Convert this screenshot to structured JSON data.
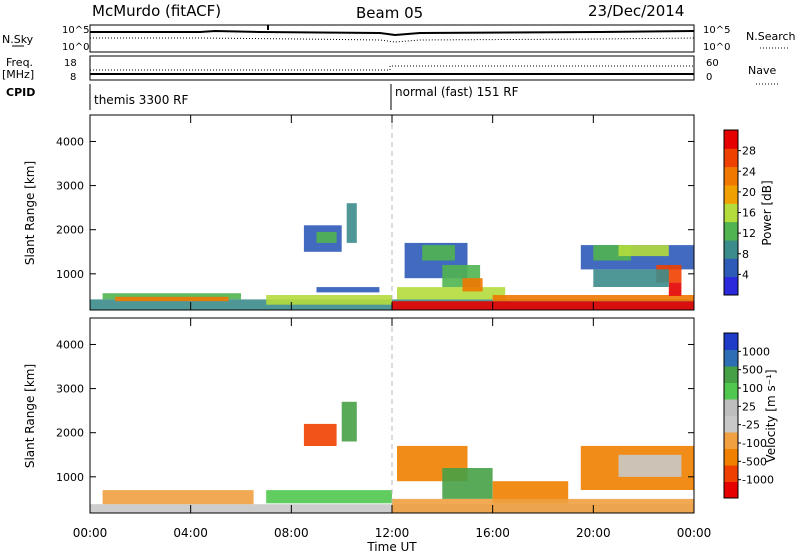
{
  "header": {
    "station": "McMurdo (fitACF)",
    "beam": "Beam 05",
    "date": "23/Dec/2014"
  },
  "top_panels": {
    "nsky_label": "N.Sky",
    "nsearch_label": "N.Search",
    "sky_ticks": [
      "10^5",
      "10^0"
    ],
    "search_ticks": [
      "10^5",
      "10^0"
    ],
    "freq_label_1": "Freq.",
    "freq_label_2": "[MHz]",
    "freq_ticks": [
      "18",
      "8"
    ],
    "nave_label": "Nave",
    "nave_ticks": [
      "60",
      "0"
    ],
    "cpid_label": "CPID",
    "cpid_segments": [
      "themis 3300 RF",
      "normal (fast) 151 RF"
    ]
  },
  "colors": {
    "power": [
      "#2a2adc",
      "#2e5ab8",
      "#3c8c8c",
      "#50b450",
      "#b4dc3c",
      "#f0a000",
      "#f07800",
      "#f04000",
      "#e60000"
    ],
    "velocity": [
      "#e60000",
      "#f04000",
      "#f08000",
      "#f0a040",
      "#c8c8c8",
      "#bebebe",
      "#50c850",
      "#46a046",
      "#2e6eb4",
      "#1e3cc8"
    ]
  },
  "chart_data": [
    {
      "type": "heatmap",
      "name": "power",
      "ylabel": "Slant Range [km]",
      "xlabel": "",
      "x_ticks": [
        "00:00",
        "04:00",
        "08:00",
        "12:00",
        "16:00",
        "20:00",
        "00:00"
      ],
      "y_ticks": [
        "1000",
        "2000",
        "3000",
        "4000"
      ],
      "xlim": [
        0,
        24
      ],
      "ylim": [
        180,
        4600
      ],
      "colorbar_label": "Power [dB]",
      "colorbar_ticks": [
        "4",
        "8",
        "12",
        "16",
        "20",
        "24",
        "28"
      ],
      "colorbar_range": [
        0,
        30
      ],
      "regions": [
        {
          "t": [
            0.0,
            24.0
          ],
          "r": [
            180,
            420
          ],
          "c": 2
        },
        {
          "t": [
            0.5,
            6.0
          ],
          "r": [
            420,
            560
          ],
          "c": 3
        },
        {
          "t": [
            1.0,
            5.5
          ],
          "r": [
            380,
            480
          ],
          "c": 6
        },
        {
          "t": [
            7.0,
            12.0
          ],
          "r": [
            300,
            520
          ],
          "c": 4
        },
        {
          "t": [
            9.0,
            11.5
          ],
          "r": [
            580,
            700
          ],
          "c": 1
        },
        {
          "t": [
            8.5,
            10.0
          ],
          "r": [
            1500,
            2100
          ],
          "c": 1
        },
        {
          "t": [
            9.0,
            9.8
          ],
          "r": [
            1700,
            1950
          ],
          "c": 3
        },
        {
          "t": [
            10.2,
            10.6
          ],
          "r": [
            1700,
            2600
          ],
          "c": 2
        },
        {
          "t": [
            12.2,
            16.5
          ],
          "r": [
            420,
            700
          ],
          "c": 4
        },
        {
          "t": [
            12.5,
            15.0
          ],
          "r": [
            900,
            1700
          ],
          "c": 1
        },
        {
          "t": [
            13.2,
            14.5
          ],
          "r": [
            1300,
            1650
          ],
          "c": 3
        },
        {
          "t": [
            14.0,
            15.5
          ],
          "r": [
            700,
            1200
          ],
          "c": 3
        },
        {
          "t": [
            14.8,
            15.6
          ],
          "r": [
            600,
            900
          ],
          "c": 6
        },
        {
          "t": [
            12.0,
            24.0
          ],
          "r": [
            180,
            380
          ],
          "c": 8
        },
        {
          "t": [
            16.0,
            24.0
          ],
          "r": [
            380,
            520
          ],
          "c": 6
        },
        {
          "t": [
            19.5,
            24.0
          ],
          "r": [
            1100,
            1650
          ],
          "c": 1
        },
        {
          "t": [
            20.0,
            21.5
          ],
          "r": [
            1300,
            1650
          ],
          "c": 3
        },
        {
          "t": [
            21.0,
            23.0
          ],
          "r": [
            1400,
            1650
          ],
          "c": 4
        },
        {
          "t": [
            22.5,
            23.5
          ],
          "r": [
            800,
            1200
          ],
          "c": 7
        },
        {
          "t": [
            23.0,
            23.5
          ],
          "r": [
            500,
            800
          ],
          "c": 8
        },
        {
          "t": [
            20.0,
            23.0
          ],
          "r": [
            700,
            1100
          ],
          "c": 2
        }
      ]
    },
    {
      "type": "heatmap",
      "name": "velocity",
      "ylabel": "Slant Range [km]",
      "xlabel": "Time UT",
      "x_ticks": [
        "00:00",
        "04:00",
        "08:00",
        "12:00",
        "16:00",
        "20:00",
        "00:00"
      ],
      "y_ticks": [
        "1000",
        "2000",
        "3000",
        "4000"
      ],
      "xlim": [
        0,
        24
      ],
      "ylim": [
        180,
        4600
      ],
      "colorbar_label": "Velocity [m s⁻¹]",
      "colorbar_ticks": [
        "-1000",
        "-500",
        "-100",
        "-25",
        "25",
        "100",
        "500",
        "1000"
      ],
      "colorbar_range": [
        -1250,
        1250
      ],
      "regions": [
        {
          "t": [
            0.0,
            24.0
          ],
          "r": [
            180,
            380
          ],
          "c": 4
        },
        {
          "t": [
            0.5,
            6.5
          ],
          "r": [
            380,
            700
          ],
          "c": 3
        },
        {
          "t": [
            7.0,
            12.0
          ],
          "r": [
            400,
            700
          ],
          "c": 6
        },
        {
          "t": [
            8.5,
            9.8
          ],
          "r": [
            1700,
            2200
          ],
          "c": 1
        },
        {
          "t": [
            10.0,
            10.6
          ],
          "r": [
            1800,
            2700
          ],
          "c": 7
        },
        {
          "t": [
            12.2,
            15.0
          ],
          "r": [
            900,
            1700
          ],
          "c": 2
        },
        {
          "t": [
            14.0,
            16.0
          ],
          "r": [
            500,
            1200
          ],
          "c": 7
        },
        {
          "t": [
            16.0,
            19.0
          ],
          "r": [
            400,
            900
          ],
          "c": 2
        },
        {
          "t": [
            19.5,
            24.0
          ],
          "r": [
            700,
            1700
          ],
          "c": 2
        },
        {
          "t": [
            21.0,
            23.5
          ],
          "r": [
            1000,
            1500
          ],
          "c": 4
        },
        {
          "t": [
            12.0,
            24.0
          ],
          "r": [
            180,
            500
          ],
          "c": 3
        }
      ]
    }
  ]
}
